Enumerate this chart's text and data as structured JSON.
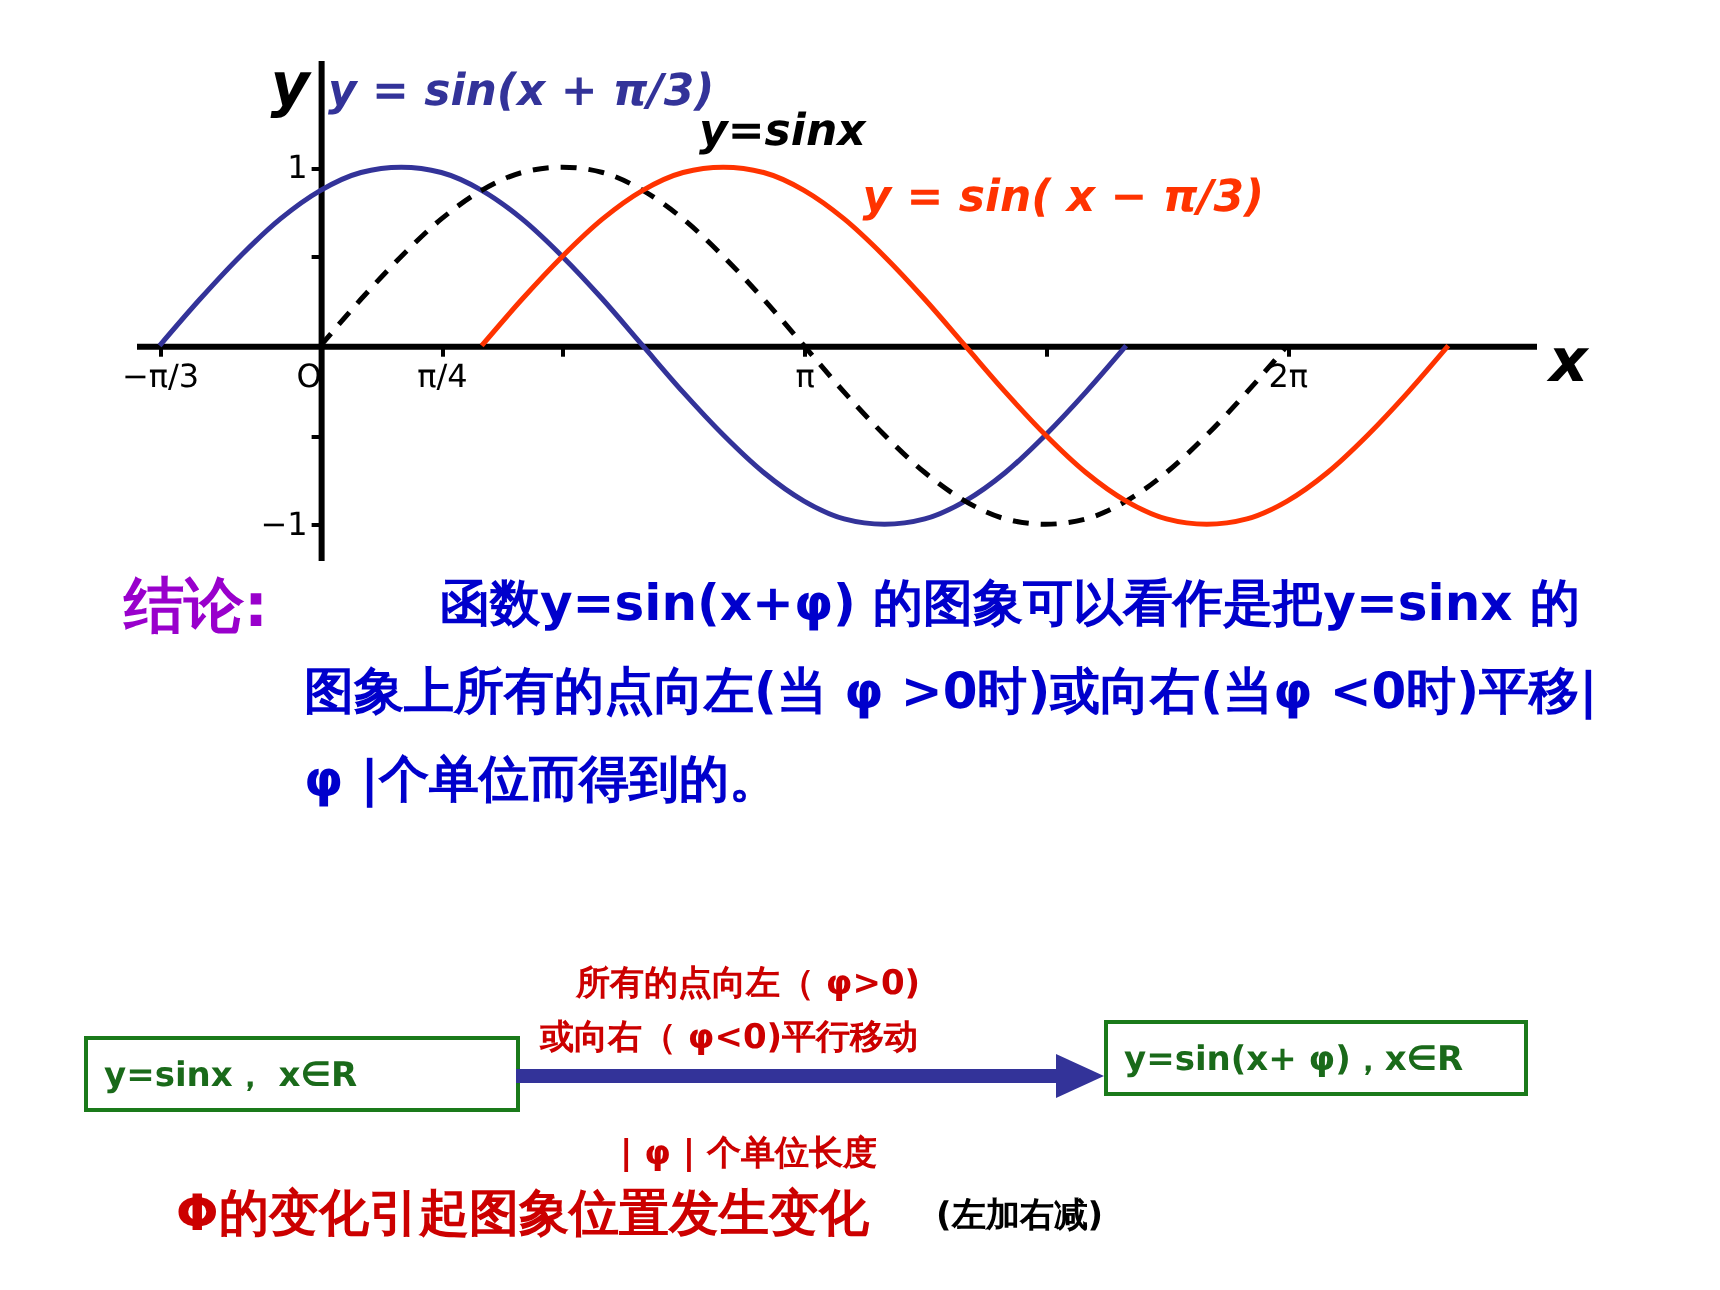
{
  "chart_data": {
    "type": "line",
    "xlabel": "x",
    "ylabel": "y",
    "xlim": [
      -1.2,
      7.9
    ],
    "ylim": [
      -1.2,
      1.6
    ],
    "xticks": [
      {
        "value": -1.047,
        "label": "−π/3"
      },
      {
        "value": 0,
        "label": "O"
      },
      {
        "value": 0.785,
        "label": "π/4"
      },
      {
        "value": 1.571,
        "label": null
      },
      {
        "value": 3.142,
        "label": "π"
      },
      {
        "value": 4.712,
        "label": null
      },
      {
        "value": 6.283,
        "label": "2π"
      }
    ],
    "yticks": [
      -1,
      {
        "value": -0.5,
        "label": null
      },
      {
        "value": 0.5,
        "label": null
      },
      1
    ],
    "grid": false,
    "legend": false,
    "series": [
      {
        "name": "y = sin(x + π/3)",
        "color": "#333399",
        "line_style": "solid",
        "x": [
          -1.047,
          -0.785,
          -0.524,
          -0.262,
          0,
          0.262,
          0.524,
          0.785,
          1.047,
          1.309,
          1.571,
          1.833,
          2.094,
          2.356,
          2.618,
          2.88,
          3.142,
          3.403,
          3.665,
          3.927,
          4.189,
          4.451,
          4.712,
          4.974,
          5.236
        ],
        "values": [
          0,
          0.26,
          0.5,
          0.71,
          0.87,
          0.97,
          1,
          0.97,
          0.87,
          0.71,
          0.5,
          0.26,
          0,
          -0.26,
          -0.5,
          -0.71,
          -0.87,
          -0.97,
          -1,
          -0.97,
          -0.87,
          -0.71,
          -0.5,
          -0.26,
          0
        ]
      },
      {
        "name": "y=sinx",
        "color": "#000000",
        "line_style": "dashed",
        "x": [
          0,
          0.262,
          0.524,
          0.785,
          1.047,
          1.309,
          1.571,
          1.833,
          2.094,
          2.356,
          2.618,
          2.88,
          3.142,
          3.403,
          3.665,
          3.927,
          4.189,
          4.451,
          4.712,
          4.974,
          5.236,
          5.498,
          5.76,
          6.021,
          6.283
        ],
        "values": [
          0,
          0.26,
          0.5,
          0.71,
          0.87,
          0.97,
          1,
          0.97,
          0.87,
          0.71,
          0.5,
          0.26,
          0,
          -0.26,
          -0.5,
          -0.71,
          -0.87,
          -0.97,
          -1,
          -0.97,
          -0.87,
          -0.71,
          -0.5,
          -0.26,
          0
        ]
      },
      {
        "name": "y = sin( x − π/3)",
        "color": "#ff3300",
        "line_style": "solid",
        "x": [
          1.047,
          1.309,
          1.571,
          1.833,
          2.094,
          2.356,
          2.618,
          2.88,
          3.142,
          3.403,
          3.665,
          3.927,
          4.189,
          4.451,
          4.712,
          4.974,
          5.236,
          5.498,
          5.76,
          6.021,
          6.283,
          6.545,
          6.807,
          7.069,
          7.33
        ],
        "values": [
          0,
          0.26,
          0.5,
          0.71,
          0.87,
          0.97,
          1,
          0.97,
          0.87,
          0.71,
          0.5,
          0.26,
          0,
          -0.26,
          -0.5,
          -0.71,
          -0.87,
          -0.97,
          -1,
          -0.97,
          -0.87,
          -0.71,
          -0.5,
          -0.26,
          0
        ]
      }
    ],
    "annotations": [
      "结论:",
      "函数y=sin(x+φ) 的图象可以看作是把y=sinx 的图象上所有的点向左(当 φ >0时)或向右(当φ <0时)平移| φ |个单位而得到的。",
      "y=sinx， x∈R",
      "所有的点向左（ φ>0)",
      "或向右（ φ<0)平行移动",
      "y=sin(x+ φ)，x∈R",
      "| φ | 个单位长度",
      "Φ的变化引起图象位置发生变化",
      "(左加右减)"
    ]
  }
}
